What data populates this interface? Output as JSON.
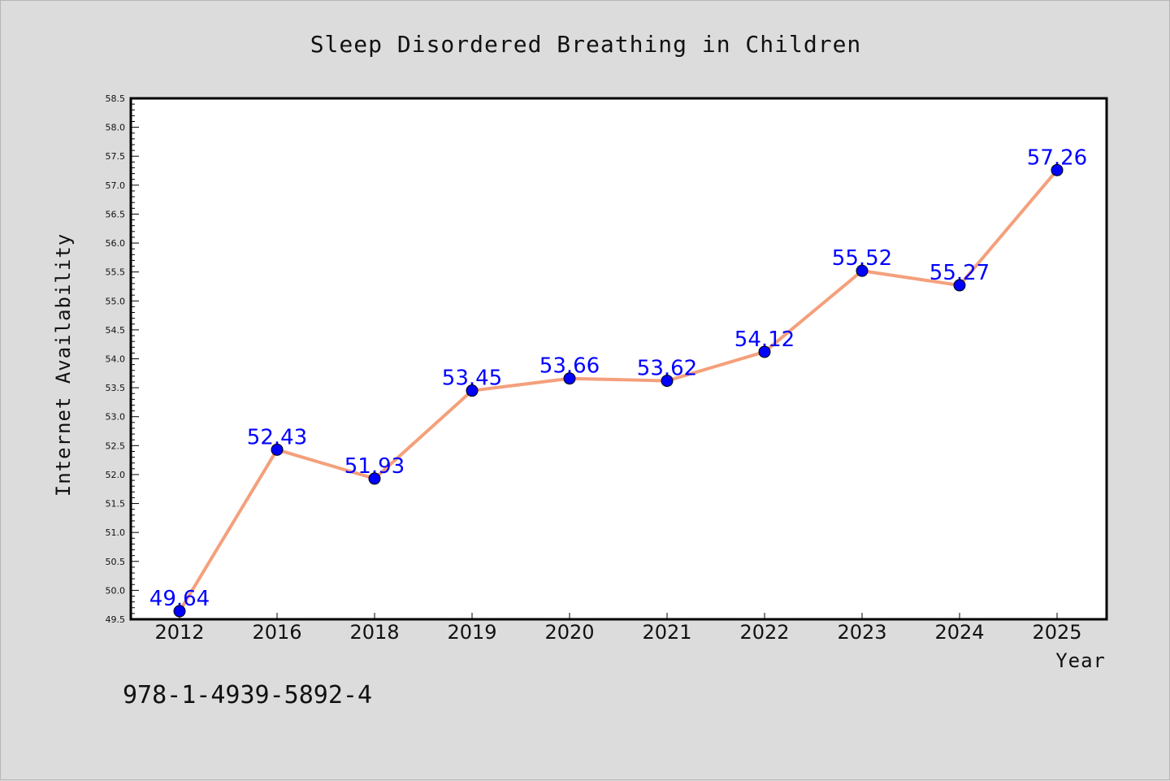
{
  "chart_data": {
    "type": "line",
    "title": "Sleep Disordered Breathing in Children",
    "xlabel": "Year",
    "ylabel": "Internet Availability",
    "categories": [
      "2012",
      "2016",
      "2018",
      "2019",
      "2020",
      "2021",
      "2022",
      "2023",
      "2024",
      "2025"
    ],
    "series": [
      {
        "values": [
          49.64,
          52.43,
          51.93,
          53.45,
          53.66,
          53.62,
          54.12,
          55.52,
          55.27,
          57.26
        ],
        "data_labels": [
          "49.64",
          "52.43",
          "51.93",
          "53.45",
          "53.66",
          "53.62",
          "54.12",
          "55.52",
          "55.27",
          "57.26"
        ],
        "line_color": "#f4a07c",
        "marker_color": "#0000ff"
      }
    ],
    "ylim": [
      49.5,
      58.5
    ],
    "yticks": [
      "49.5",
      "50.0",
      "50.5",
      "51.0",
      "51.5",
      "52.0",
      "52.5",
      "53.0",
      "53.5",
      "54.0",
      "54.5",
      "55.0",
      "55.5",
      "56.0",
      "56.5",
      "57.0",
      "57.5",
      "58.0",
      "58.5"
    ],
    "grid": false,
    "legend": "none"
  },
  "footer": {
    "isbn": "978-1-4939-5892-4"
  },
  "colors": {
    "background": "#dcdcdc",
    "plot_background": "#ffffff",
    "line": "#f4a07c",
    "marker": "#0000ff",
    "data_label": "#0000ff"
  }
}
